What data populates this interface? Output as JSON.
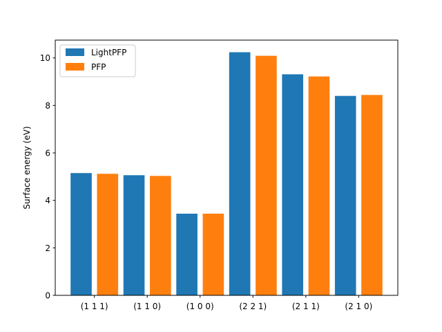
{
  "chart_data": {
    "type": "bar",
    "categories": [
      "(1 1 1)",
      "(1 1 0)",
      "(1 0 0)",
      "(2 2 1)",
      "(2 1 1)",
      "(2 1 0)"
    ],
    "series": [
      {
        "name": "LightPFP",
        "color": "#1f77b4",
        "values": [
          5.15,
          5.06,
          3.44,
          10.24,
          9.31,
          8.4
        ]
      },
      {
        "name": "PFP",
        "color": "#ff7f0e",
        "values": [
          5.12,
          5.03,
          3.44,
          10.09,
          9.22,
          8.44
        ]
      }
    ],
    "ylabel": "Surface energy (eV)",
    "ylim": [
      0,
      10.75
    ],
    "yticks": [
      0,
      2,
      4,
      6,
      8,
      10
    ],
    "legend": {
      "position": "top-left"
    },
    "grid": false
  }
}
